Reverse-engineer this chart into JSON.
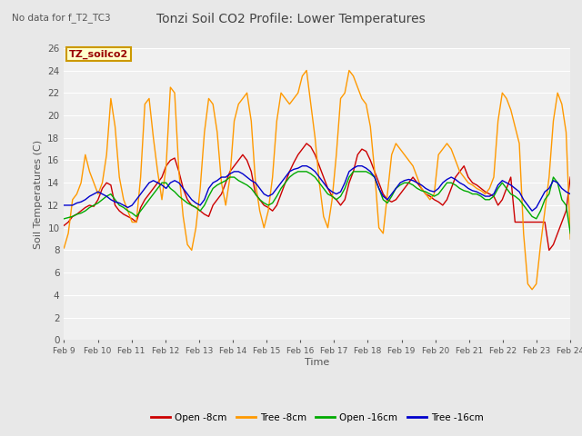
{
  "title": "Tonzi Soil CO2 Profile: Lower Temperatures",
  "subtitle": "No data for f_T2_TC3",
  "xlabel": "Time",
  "ylabel": "Soil Temperatures (C)",
  "ylim": [
    0,
    26
  ],
  "yticks": [
    0,
    2,
    4,
    6,
    8,
    10,
    12,
    14,
    16,
    18,
    20,
    22,
    24,
    26
  ],
  "xtick_labels": [
    "Feb 9",
    "Feb 10",
    "Feb 11",
    "Feb 12",
    "Feb 13",
    "Feb 14",
    "Feb 15",
    "Feb 16",
    "Feb 17",
    "Feb 18",
    "Feb 19",
    "Feb 20",
    "Feb 21",
    "Feb 22",
    "Feb 23",
    "Feb 24"
  ],
  "legend_labels": [
    "Open -8cm",
    "Tree -8cm",
    "Open -16cm",
    "Tree -16cm"
  ],
  "legend_colors": [
    "#cc0000",
    "#ff9900",
    "#00aa00",
    "#0000cc"
  ],
  "inset_label": "TZ_soilco2",
  "inset_bg": "#ffffcc",
  "inset_border": "#cc9900",
  "bg_color": "#e8e8e8",
  "plot_bg": "#f0f0f0",
  "grid_color": "#ffffff",
  "title_color": "#444444",
  "open_8cm": [
    10.2,
    10.5,
    11.0,
    11.2,
    11.5,
    11.8,
    12.0,
    11.9,
    12.5,
    13.5,
    14.0,
    13.8,
    12.0,
    11.5,
    11.2,
    11.0,
    10.8,
    10.5,
    11.8,
    12.5,
    13.0,
    13.5,
    14.0,
    14.5,
    15.5,
    16.0,
    16.2,
    15.0,
    13.5,
    12.5,
    12.0,
    11.8,
    11.5,
    11.2,
    11.0,
    12.0,
    12.5,
    13.0,
    14.0,
    15.0,
    15.5,
    16.0,
    16.5,
    16.0,
    15.0,
    13.0,
    12.5,
    12.0,
    11.8,
    11.5,
    12.0,
    13.0,
    14.0,
    15.0,
    15.8,
    16.5,
    17.0,
    17.5,
    17.2,
    16.5,
    15.5,
    14.5,
    13.5,
    12.8,
    12.5,
    12.0,
    12.5,
    14.0,
    15.0,
    16.5,
    17.0,
    16.8,
    16.0,
    15.0,
    14.0,
    13.0,
    12.5,
    12.3,
    12.5,
    13.0,
    13.5,
    14.0,
    14.5,
    14.0,
    13.5,
    13.0,
    12.8,
    12.5,
    12.3,
    12.0,
    12.5,
    13.5,
    14.5,
    15.0,
    15.5,
    14.5,
    14.0,
    13.8,
    13.5,
    13.2,
    13.0,
    12.8,
    12.0,
    12.5,
    13.5,
    14.5,
    10.5,
    10.5,
    10.5,
    10.5,
    10.5,
    10.5,
    10.5,
    10.5,
    8.0,
    8.5,
    9.5,
    10.5,
    11.5,
    14.5
  ],
  "tree_8cm": [
    8.2,
    9.5,
    12.5,
    13.0,
    14.0,
    16.5,
    15.0,
    14.0,
    13.0,
    14.0,
    16.5,
    21.5,
    19.0,
    14.5,
    12.5,
    11.5,
    10.5,
    10.5,
    14.5,
    21.0,
    21.5,
    18.0,
    15.0,
    12.5,
    15.5,
    22.5,
    22.0,
    15.0,
    11.0,
    8.5,
    8.0,
    10.0,
    13.5,
    18.5,
    21.5,
    21.0,
    18.5,
    14.0,
    12.0,
    14.5,
    19.5,
    21.0,
    21.5,
    22.0,
    19.5,
    14.0,
    11.5,
    10.0,
    11.5,
    14.5,
    19.5,
    22.0,
    21.5,
    21.0,
    21.5,
    22.0,
    23.5,
    24.0,
    21.0,
    18.0,
    14.0,
    11.0,
    10.0,
    12.5,
    16.5,
    21.5,
    22.0,
    24.0,
    23.5,
    22.5,
    21.5,
    21.0,
    19.0,
    15.0,
    10.0,
    9.5,
    13.0,
    16.5,
    17.5,
    17.0,
    16.5,
    16.0,
    15.5,
    14.5,
    13.5,
    13.0,
    12.5,
    13.0,
    16.5,
    17.0,
    17.5,
    17.0,
    16.0,
    15.0,
    14.5,
    14.0,
    13.8,
    13.5,
    13.3,
    13.0,
    13.5,
    14.5,
    19.5,
    22.0,
    21.5,
    20.5,
    19.0,
    17.5,
    9.5,
    5.0,
    4.5,
    5.0,
    8.5,
    11.5,
    14.5,
    19.5,
    22.0,
    21.0,
    18.5,
    9.0
  ],
  "open_16cm": [
    10.8,
    10.9,
    11.0,
    11.2,
    11.3,
    11.5,
    11.8,
    12.0,
    12.2,
    12.5,
    12.8,
    13.0,
    12.5,
    12.0,
    11.8,
    11.5,
    11.3,
    11.0,
    11.5,
    12.0,
    12.5,
    13.0,
    13.5,
    14.0,
    14.0,
    13.5,
    13.2,
    12.8,
    12.5,
    12.2,
    12.0,
    11.8,
    11.5,
    12.0,
    12.8,
    13.5,
    13.8,
    14.0,
    14.2,
    14.5,
    14.5,
    14.2,
    14.0,
    13.8,
    13.5,
    13.0,
    12.5,
    12.2,
    12.0,
    12.2,
    12.8,
    13.5,
    14.0,
    14.5,
    14.8,
    15.0,
    15.0,
    15.0,
    14.8,
    14.5,
    14.0,
    13.5,
    13.0,
    12.8,
    12.5,
    12.8,
    13.5,
    14.5,
    15.0,
    15.0,
    15.0,
    15.0,
    14.8,
    14.5,
    13.5,
    12.5,
    12.2,
    12.8,
    13.5,
    13.8,
    14.0,
    14.0,
    13.8,
    13.5,
    13.3,
    13.2,
    13.0,
    12.8,
    13.0,
    13.5,
    14.0,
    14.0,
    13.8,
    13.5,
    13.3,
    13.2,
    13.0,
    13.0,
    12.8,
    12.5,
    12.5,
    12.8,
    13.5,
    14.0,
    13.5,
    13.0,
    12.8,
    12.5,
    12.0,
    11.5,
    11.0,
    10.8,
    11.5,
    12.5,
    13.0,
    14.5,
    14.0,
    12.5,
    12.0,
    9.5
  ],
  "tree_16cm": [
    12.0,
    12.0,
    12.0,
    12.2,
    12.3,
    12.5,
    12.8,
    13.0,
    13.2,
    13.0,
    12.8,
    12.5,
    12.3,
    12.2,
    12.0,
    11.8,
    12.0,
    12.5,
    13.0,
    13.5,
    14.0,
    14.2,
    14.0,
    13.8,
    13.5,
    14.0,
    14.2,
    14.0,
    13.5,
    13.0,
    12.5,
    12.2,
    12.0,
    12.5,
    13.5,
    14.0,
    14.2,
    14.5,
    14.5,
    14.8,
    15.0,
    15.0,
    14.8,
    14.5,
    14.2,
    14.0,
    13.5,
    13.0,
    12.8,
    13.0,
    13.5,
    14.0,
    14.5,
    15.0,
    15.2,
    15.3,
    15.5,
    15.5,
    15.3,
    15.0,
    14.5,
    14.0,
    13.5,
    13.2,
    13.0,
    13.2,
    14.0,
    15.0,
    15.3,
    15.5,
    15.5,
    15.3,
    15.0,
    14.5,
    13.5,
    12.8,
    12.5,
    13.0,
    13.5,
    14.0,
    14.2,
    14.3,
    14.2,
    14.0,
    13.8,
    13.5,
    13.3,
    13.2,
    13.5,
    14.0,
    14.3,
    14.5,
    14.3,
    14.0,
    13.8,
    13.5,
    13.3,
    13.2,
    13.0,
    12.8,
    12.8,
    13.0,
    13.8,
    14.2,
    14.0,
    13.8,
    13.5,
    13.2,
    12.5,
    12.0,
    11.5,
    11.8,
    12.5,
    13.2,
    13.5,
    14.2,
    14.0,
    13.5,
    13.2,
    13.0
  ]
}
